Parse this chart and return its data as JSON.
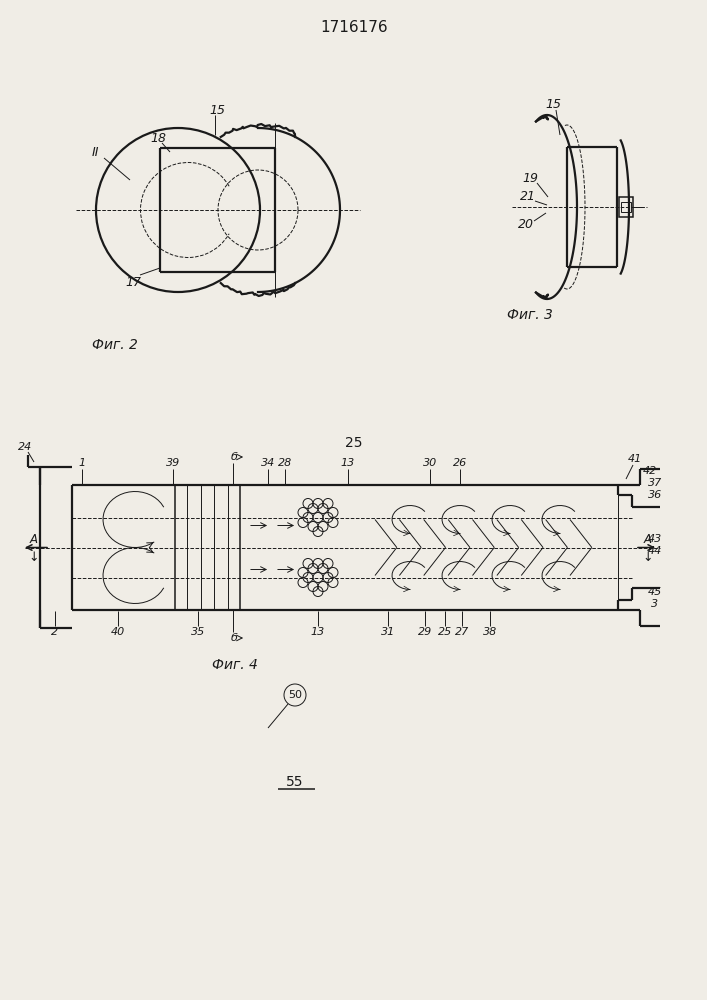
{
  "title": "1716176",
  "fig2_label": "Фиг. 2",
  "fig3_label": "Фиг. 3",
  "fig4_label": "Фиг. 4",
  "bg_color": "#f0ede6",
  "line_color": "#1a1a1a",
  "label_25": "25",
  "label_55": "55",
  "label_50": "50"
}
